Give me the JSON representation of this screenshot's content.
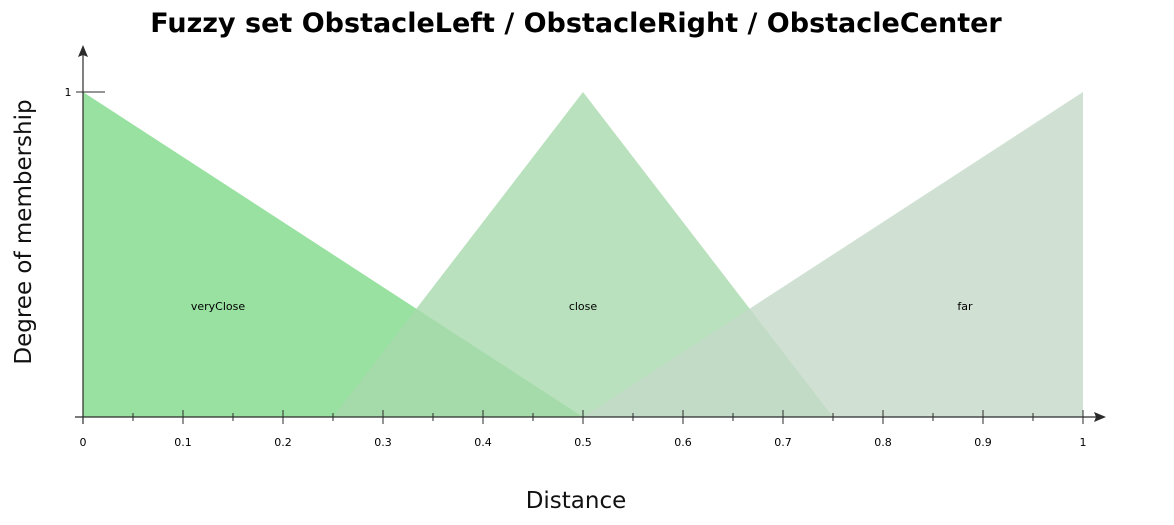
{
  "chart_data": {
    "type": "area",
    "title": "Fuzzy set ObstacleLeft / ObstacleRight / ObstacleCenter",
    "xlabel": "Distance",
    "ylabel": "Degree of membership",
    "xlim": [
      0,
      1
    ],
    "ylim": [
      0,
      1
    ],
    "grid": false,
    "x_ticks": [
      "0",
      "0.1",
      "0.2",
      "0.3",
      "0.4",
      "0.5",
      "0.6",
      "0.7",
      "0.8",
      "0.9",
      "1"
    ],
    "x_minor_ticks": [
      0.05,
      0.15,
      0.25,
      0.35,
      0.45,
      0.55,
      0.65,
      0.75,
      0.85,
      0.95
    ],
    "y_ticks": [
      "1"
    ],
    "series": [
      {
        "name": "veryClose",
        "color": "#7fd98a",
        "opacity": 0.8,
        "x": [
          0,
          0,
          0.5
        ],
        "y": [
          0,
          1,
          0
        ],
        "label_x": 0.135,
        "label_y": 0.33
      },
      {
        "name": "close",
        "color": "#a8d9ad",
        "opacity": 0.8,
        "x": [
          0.25,
          0.5,
          0.75
        ],
        "y": [
          0,
          1,
          0
        ],
        "label_x": 0.5,
        "label_y": 0.33
      },
      {
        "name": "far",
        "color": "#c4d9c8",
        "opacity": 0.8,
        "x": [
          0.5,
          1,
          1
        ],
        "y": [
          0,
          1,
          0
        ],
        "label_x": 0.882,
        "label_y": 0.33
      }
    ]
  }
}
